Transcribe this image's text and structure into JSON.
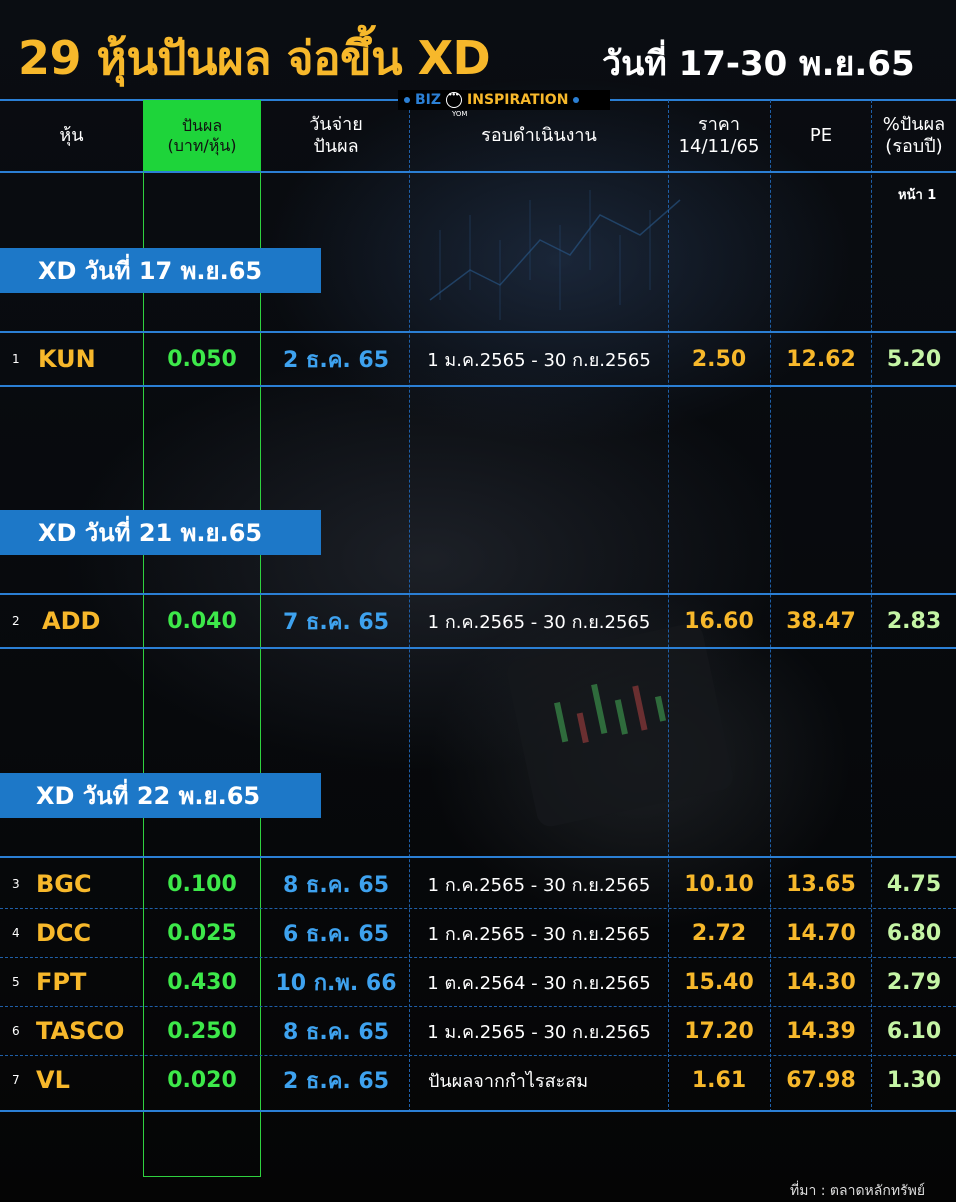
{
  "title": {
    "main": "29 หุ้นปันผล จ่อขึ้น XD",
    "date_range": "วันที่ 17-30 พ.ย.65"
  },
  "brand": {
    "left": "BIZ",
    "right": "INSPIRATION",
    "sub": "YOM",
    "logo_icon": "chat-face-icon"
  },
  "columns": {
    "stock": "หุ้น",
    "dividend_line1": "ปันผล",
    "dividend_line2": "(บาท/หุ้น)",
    "pay_date_line1": "วันจ่าย",
    "pay_date_line2": "ปันผล",
    "period": "รอบดำเนินงาน",
    "price_line1": "ราคา",
    "price_line2": "14/11/65",
    "pe": "PE",
    "yield_line1": "%ปันผล",
    "yield_line2": "(รอบปี)"
  },
  "page_label": "หน้า 1",
  "groups": [
    {
      "label": "XD วันที่ 17 พ.ย.65"
    },
    {
      "label": "XD วันที่ 21 พ.ย.65"
    },
    {
      "label": "XD วันที่ 22 พ.ย.65"
    }
  ],
  "rows": [
    {
      "no": "1",
      "symbol": "KUN",
      "dividend": "0.050",
      "pay_date": "2 ธ.ค. 65",
      "period": "1 ม.ค.2565 - 30 ก.ย.2565",
      "price": "2.50",
      "pe": "12.62",
      "yield": "5.20"
    },
    {
      "no": "2",
      "symbol": "ADD",
      "dividend": "0.040",
      "pay_date": "7 ธ.ค. 65",
      "period": "1 ก.ค.2565 - 30 ก.ย.2565",
      "price": "16.60",
      "pe": "38.47",
      "yield": "2.83"
    },
    {
      "no": "3",
      "symbol": "BGC",
      "dividend": "0.100",
      "pay_date": "8 ธ.ค. 65",
      "period": "1 ก.ค.2565 - 30 ก.ย.2565",
      "price": "10.10",
      "pe": "13.65",
      "yield": "4.75"
    },
    {
      "no": "4",
      "symbol": "DCC",
      "dividend": "0.025",
      "pay_date": "6 ธ.ค. 65",
      "period": "1 ก.ค.2565 - 30 ก.ย.2565",
      "price": "2.72",
      "pe": "14.70",
      "yield": "6.80"
    },
    {
      "no": "5",
      "symbol": "FPT",
      "dividend": "0.430",
      "pay_date": "10 ก.พ. 66",
      "period": "1 ต.ค.2564 - 30 ก.ย.2565",
      "price": "15.40",
      "pe": "14.30",
      "yield": "2.79"
    },
    {
      "no": "6",
      "symbol": "TASCO",
      "dividend": "0.250",
      "pay_date": "8 ธ.ค. 65",
      "period": "1 ม.ค.2565 - 30 ก.ย.2565",
      "price": "17.20",
      "pe": "14.39",
      "yield": "6.10"
    },
    {
      "no": "7",
      "symbol": "VL",
      "dividend": "0.020",
      "pay_date": "2 ธ.ค. 65",
      "period": "ปันผลจากกำไรสะสม",
      "price": "1.61",
      "pe": "67.98",
      "yield": "1.30"
    }
  ],
  "source": "ที่มา : ตลาดหลักทรัพย์"
}
